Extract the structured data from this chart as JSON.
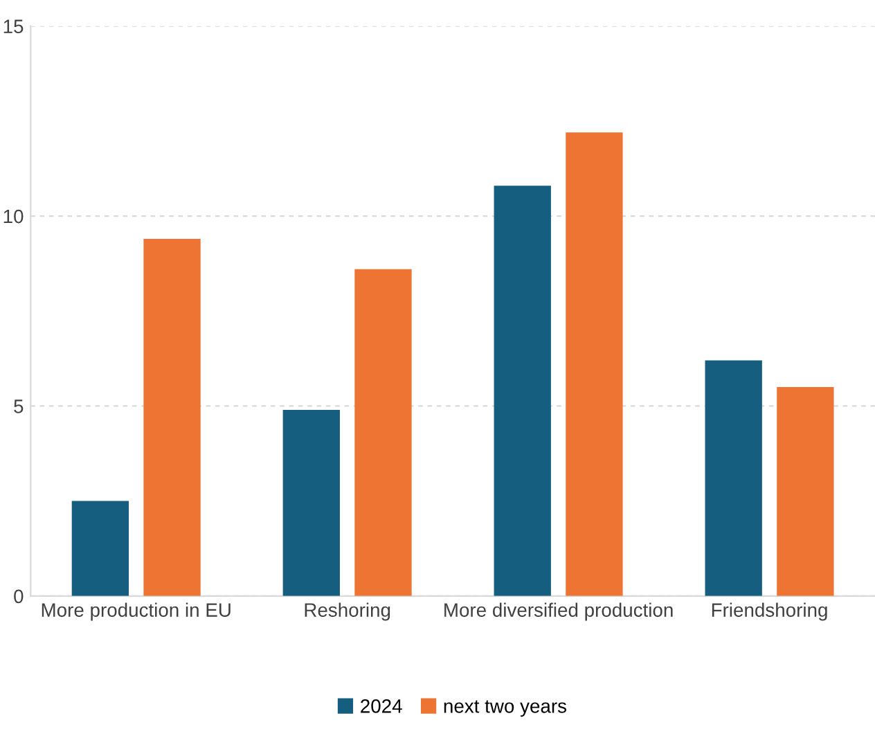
{
  "chart_data": {
    "type": "bar",
    "categories": [
      "More production in EU",
      "Reshoring",
      "More diversified production",
      "Friendshoring"
    ],
    "series": [
      {
        "name": "2024",
        "color": "#155e7f",
        "values": [
          2.5,
          4.9,
          10.8,
          6.2
        ]
      },
      {
        "name": "next two years",
        "color": "#ed7432",
        "values": [
          9.4,
          8.6,
          12.2,
          5.5
        ]
      }
    ],
    "ylim": [
      0,
      15
    ],
    "yticks": [
      0,
      5,
      10,
      15
    ],
    "grid": "y",
    "legend": "bottom"
  }
}
